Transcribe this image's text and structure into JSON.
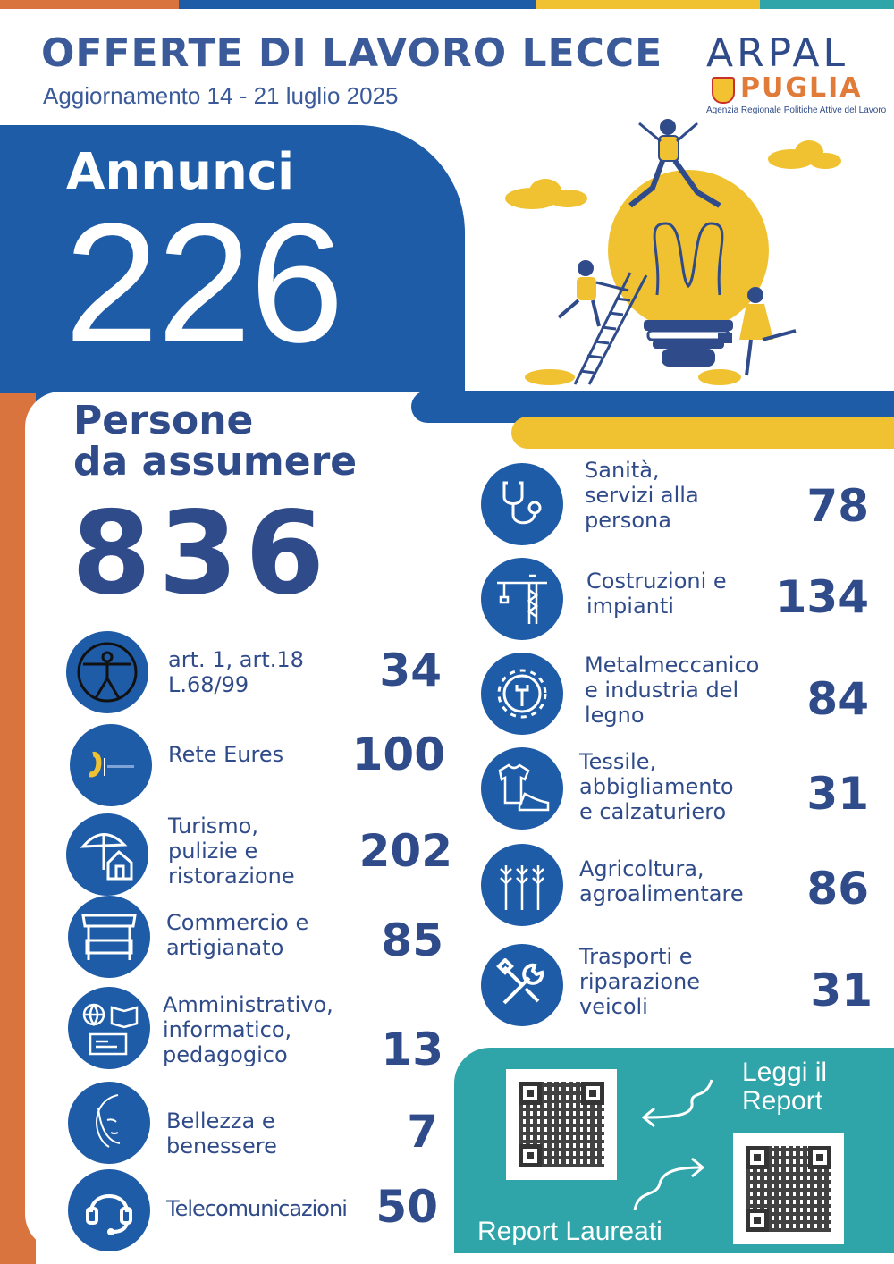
{
  "colors": {
    "blue": "#1f5ca7",
    "navy": "#2f4b8a",
    "yellow": "#f0c231",
    "orange": "#d9743f",
    "teal": "#2fa4a9",
    "red": "#c9302c"
  },
  "header": {
    "title": "OFFERTE DI LAVORO LECCE",
    "subtitle": "Aggiornamento  14 - 21 luglio 2025"
  },
  "logo": {
    "line1": "ARPAL",
    "line2": "PUGLIA",
    "agency": "Agenzia Regionale Politiche Attive del Lavoro"
  },
  "annunci": {
    "label": "Annunci",
    "value": "226"
  },
  "persone": {
    "label_line1": "Persone",
    "label_line2": "da assumere",
    "value": "836"
  },
  "left_categories": [
    {
      "icon": "accessibility-icon",
      "line1": "art. 1, art.18",
      "line2": "L.68/99",
      "line3": "",
      "value": "34"
    },
    {
      "icon": "eures-logo-icon",
      "line1": "Rete Eures",
      "line2": "",
      "line3": "",
      "value": "100"
    },
    {
      "icon": "umbrella-house-icon",
      "line1": "Turismo,",
      "line2": "pulizie e",
      "line3": "ristorazione",
      "value": "202"
    },
    {
      "icon": "market-stall-icon",
      "line1": "Commercio e",
      "line2": "artigianato",
      "line3": "",
      "value": "85"
    },
    {
      "icon": "globe-book-id-icon",
      "line1": "Amministrativo,",
      "line2": "informatico,",
      "line3": "pedagogico",
      "value": "13"
    },
    {
      "icon": "face-icon",
      "line1": "Bellezza e",
      "line2": "benessere",
      "line3": "",
      "value": "7"
    },
    {
      "icon": "headset-icon",
      "line1": "Telecomunicazioni",
      "line2": "",
      "line3": "",
      "value": "50"
    }
  ],
  "right_categories": [
    {
      "icon": "stethoscope-icon",
      "line1": "Sanità,",
      "line2": "servizi alla",
      "line3": "persona",
      "value": "78"
    },
    {
      "icon": "crane-icon",
      "line1": "Costruzioni e",
      "line2": "impianti",
      "line3": "",
      "value": "134"
    },
    {
      "icon": "gear-wrench-icon",
      "line1": "Metalmeccanico",
      "line2": "e industria del",
      "line3": "legno",
      "value": "84"
    },
    {
      "icon": "tshirt-shoe-icon",
      "line1": "Tessile,",
      "line2": "abbigliamento",
      "line3": "e calzaturiero",
      "value": "31"
    },
    {
      "icon": "wheat-icon",
      "line1": "Agricoltura,",
      "line2": "agroalimentare",
      "line3": "",
      "value": "86"
    },
    {
      "icon": "tools-icon",
      "line1": "Trasporti e",
      "line2": "riparazione",
      "line3": "veicoli",
      "value": "31"
    }
  ],
  "report": {
    "read_label_line1": "Leggi il",
    "read_label_line2": "Report",
    "graduates_label": "Report Laureati"
  }
}
